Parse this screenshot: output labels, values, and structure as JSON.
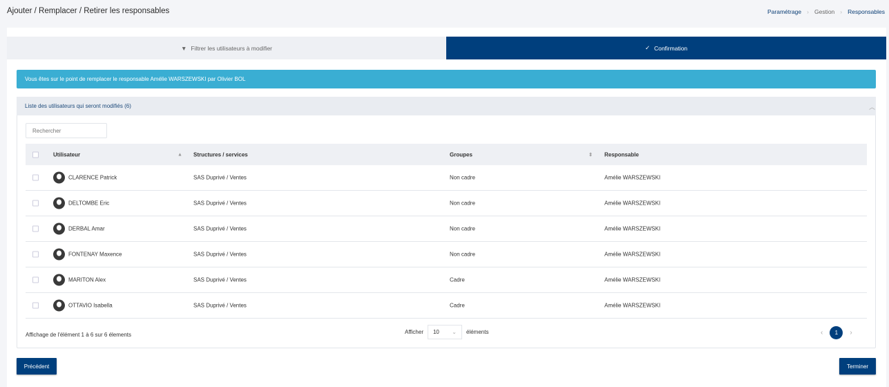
{
  "header": {
    "title": "Ajouter / Remplacer / Retirer les responsables",
    "breadcrumb": [
      "Paramétrage",
      "Gestion",
      "Responsables"
    ]
  },
  "tabs": [
    {
      "label": "Filtrer les utilisateurs à modifier",
      "icon": "filter-icon"
    },
    {
      "label": "Confirmation",
      "icon": "check-icon",
      "active": true
    }
  ],
  "alert": "Vous êtes sur le point de remplacer le responsable Amélie WARSZEWSKI par Olivier BOL",
  "panel": {
    "title": "Liste des utilisateurs qui seront modifiés",
    "count": "(6)"
  },
  "search": {
    "placeholder": "Rechercher"
  },
  "table": {
    "columns": [
      "Utilisateur",
      "Structures / services",
      "Groupes",
      "Responsable"
    ],
    "rows": [
      {
        "user": "CLARENCE Patrick",
        "structure": "SAS Duprivé / Ventes",
        "group": "Non cadre",
        "manager": "Amélie WARSZEWSKI"
      },
      {
        "user": "DELTOMBE Eric",
        "structure": "SAS Duprivé / Ventes",
        "group": "Non cadre",
        "manager": "Amélie WARSZEWSKI"
      },
      {
        "user": "DERBAL Amar",
        "structure": "SAS Duprivé / Ventes",
        "group": "Non cadre",
        "manager": "Amélie WARSZEWSKI"
      },
      {
        "user": "FONTENAY Maxence",
        "structure": "SAS Duprivé / Ventes",
        "group": "Non cadre",
        "manager": "Amélie WARSZEWSKI"
      },
      {
        "user": "MARITON Alex",
        "structure": "SAS Duprivé / Ventes",
        "group": "Cadre",
        "manager": "Amélie WARSZEWSKI"
      },
      {
        "user": "OTTAVIO Isabella",
        "structure": "SAS Duprivé / Ventes",
        "group": "Cadre",
        "manager": "Amélie WARSZEWSKI"
      }
    ]
  },
  "footer": {
    "info": "Affichage de l'élément 1 à 6 sur 6 élements",
    "show_label": "Afficher",
    "page_size": "10",
    "elements_label": "éléments",
    "current_page": "1"
  },
  "buttons": {
    "previous": "Précédent",
    "finish": "Terminer"
  },
  "colors": {
    "primary": "#003f7d",
    "info": "#3aaed3"
  }
}
